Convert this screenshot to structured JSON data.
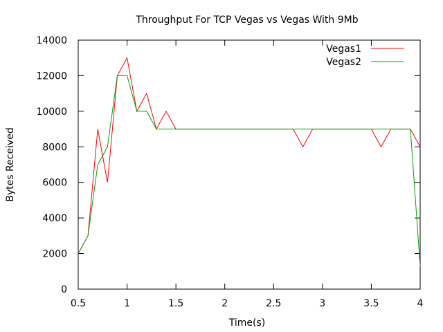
{
  "chart_data": {
    "type": "line",
    "title": "Throughput For TCP Vegas vs Vegas With 9Mb",
    "xlabel": "Time(s)",
    "ylabel": "Bytes Received",
    "xlim": [
      0.5,
      4
    ],
    "ylim": [
      0,
      14000
    ],
    "xticks": [
      "0.5",
      "1",
      "1.5",
      "2",
      "2.5",
      "3",
      "3.5",
      "4"
    ],
    "yticks": [
      "0",
      "2000",
      "4000",
      "6000",
      "8000",
      "10000",
      "12000",
      "14000"
    ],
    "grid": false,
    "legend_position": "top-right",
    "series": [
      {
        "name": "Vegas1",
        "color": "#ff0000",
        "x": [
          0.5,
          0.6,
          0.7,
          0.8,
          0.9,
          1.0,
          1.1,
          1.2,
          1.3,
          1.4,
          1.5,
          1.6,
          1.7,
          1.8,
          1.9,
          2.0,
          2.1,
          2.2,
          2.3,
          2.4,
          2.5,
          2.6,
          2.7,
          2.8,
          2.9,
          3.0,
          3.1,
          3.2,
          3.3,
          3.4,
          3.5,
          3.6,
          3.7,
          3.8,
          3.9,
          4.0
        ],
        "y": [
          2000,
          3000,
          9000,
          6000,
          12000,
          13000,
          10000,
          11000,
          9000,
          10000,
          9000,
          9000,
          9000,
          9000,
          9000,
          9000,
          9000,
          9000,
          9000,
          9000,
          9000,
          9000,
          9000,
          8000,
          9000,
          9000,
          9000,
          9000,
          9000,
          9000,
          9000,
          8000,
          9000,
          9000,
          9000,
          8000
        ]
      },
      {
        "name": "Vegas2",
        "color": "#00a000",
        "x": [
          0.5,
          0.6,
          0.7,
          0.8,
          0.9,
          1.0,
          1.1,
          1.2,
          1.3,
          1.4,
          1.5,
          1.6,
          1.7,
          1.8,
          1.9,
          2.0,
          2.1,
          2.2,
          2.3,
          2.4,
          2.5,
          2.6,
          2.7,
          2.8,
          2.9,
          3.0,
          3.1,
          3.2,
          3.3,
          3.4,
          3.5,
          3.6,
          3.7,
          3.8,
          3.9,
          4.0
        ],
        "y": [
          2000,
          3000,
          7000,
          8000,
          12000,
          12000,
          10000,
          10000,
          9000,
          9000,
          9000,
          9000,
          9000,
          9000,
          9000,
          9000,
          9000,
          9000,
          9000,
          9000,
          9000,
          9000,
          9000,
          9000,
          9000,
          9000,
          9000,
          9000,
          9000,
          9000,
          9000,
          9000,
          9000,
          9000,
          9000,
          1300
        ]
      }
    ]
  }
}
